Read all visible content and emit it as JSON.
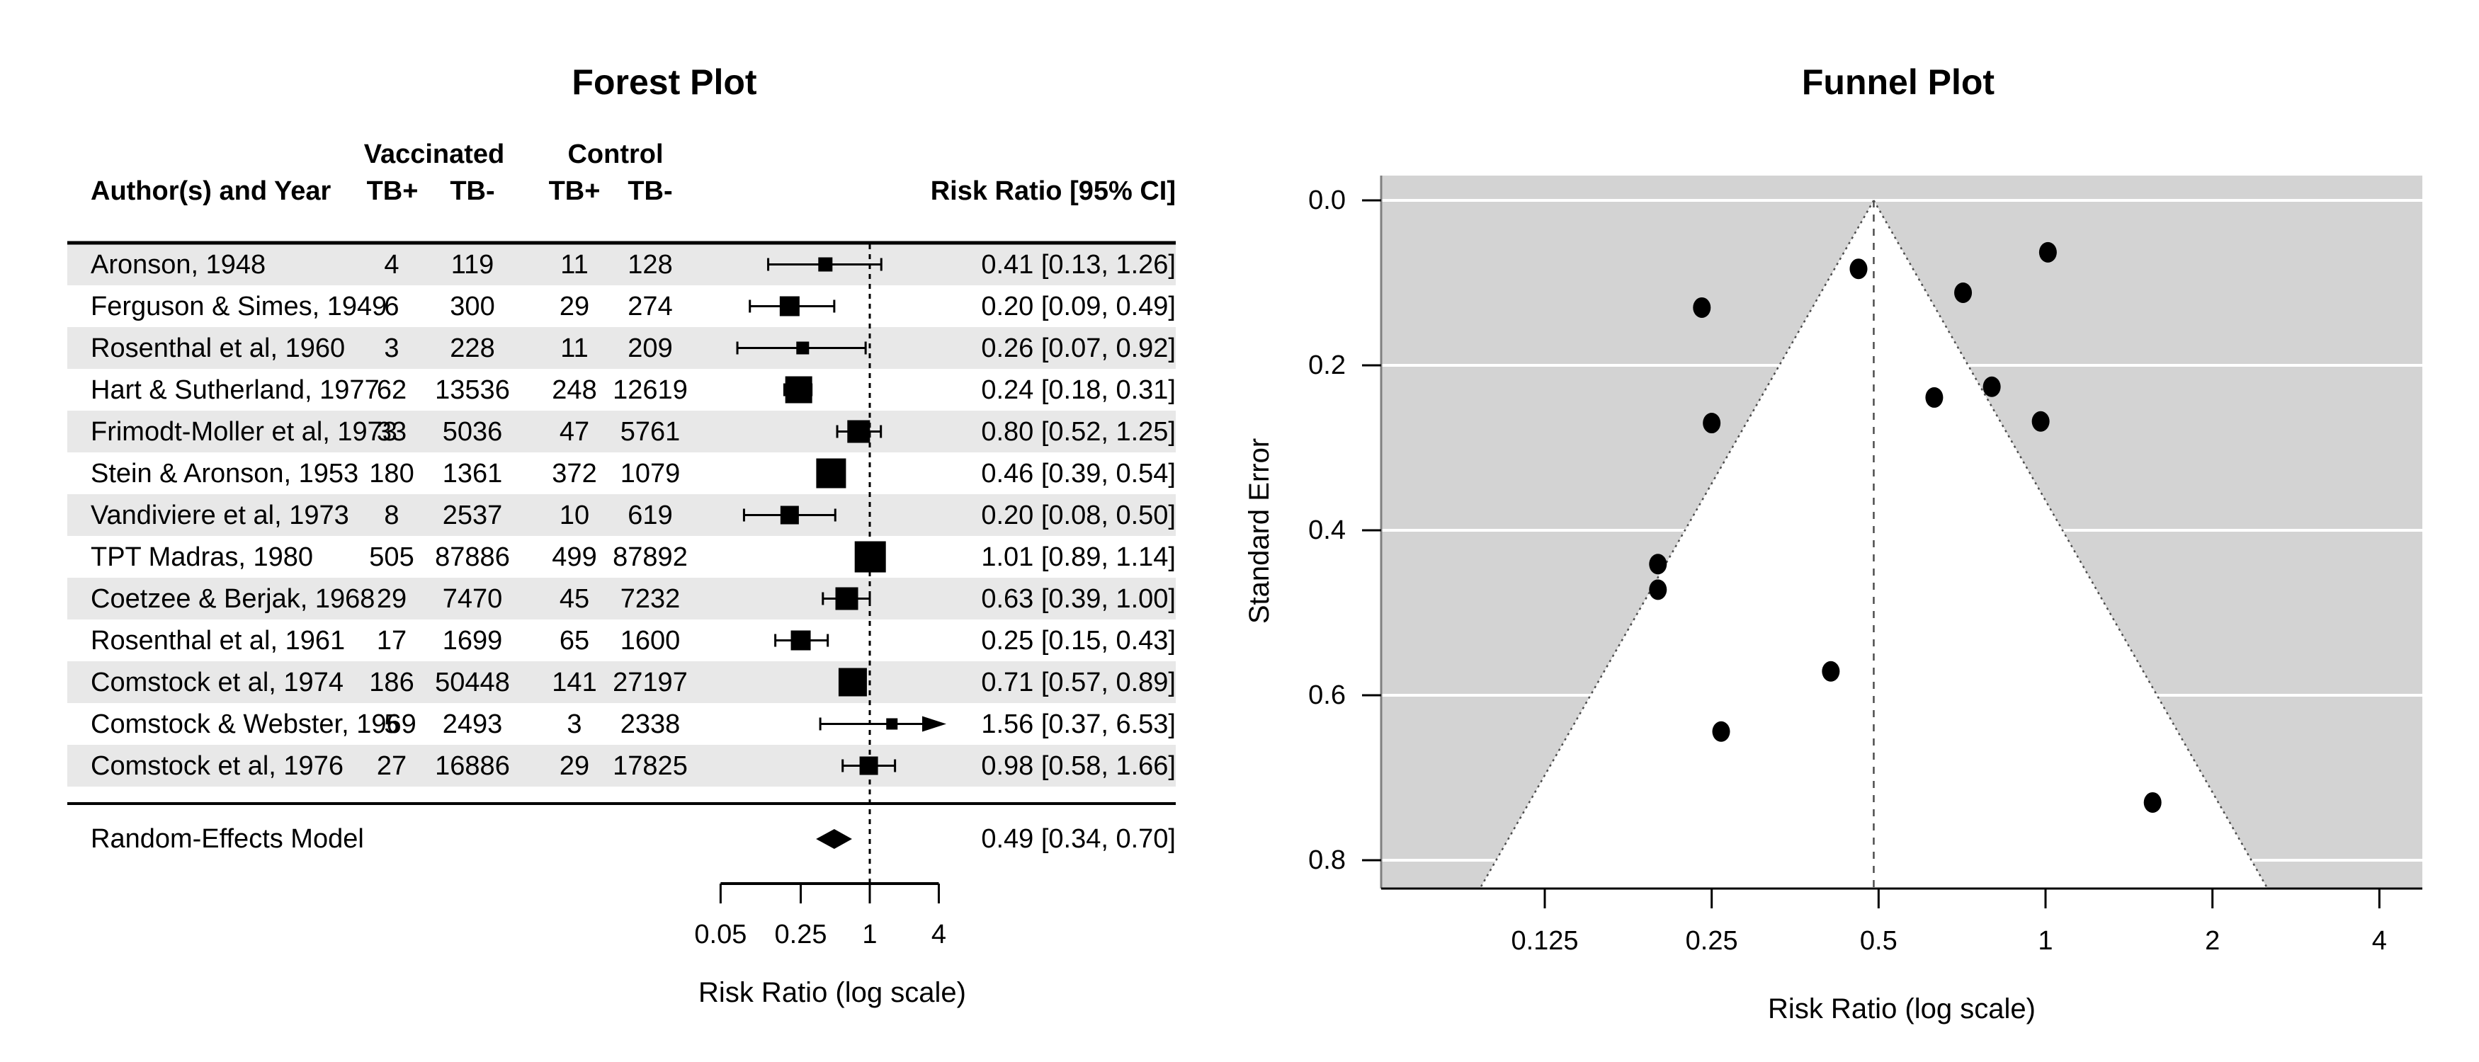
{
  "figure_title": "Meta-analysis: Forest Plot and Funnel Plot",
  "colors": {
    "background": "#FFFFFF",
    "stripe": "#E8E8E8",
    "funnel_background": "#D3D3D3",
    "funnel_region": "#FFFFFF",
    "gridline": "#FFFFFF",
    "ink": "#000000",
    "dotted_line": "#4D4D4D",
    "left_axis": "#808080"
  },
  "chart_data": [
    {
      "type": "forest",
      "title": "Forest Plot",
      "header": {
        "group1": "Vaccinated",
        "group2": "Control",
        "author": "Author(s) and Year",
        "sub": [
          "TB+",
          "TB-",
          "TB+",
          "TB-"
        ],
        "effect": "Risk Ratio [95% CI]"
      },
      "xlabel": "Risk Ratio (log scale)",
      "x_ticks": [
        {
          "value": 0.05,
          "label": "0.05"
        },
        {
          "value": 0.25,
          "label": "0.25"
        },
        {
          "value": 1,
          "label": "1"
        },
        {
          "value": 4,
          "label": "4"
        }
      ],
      "ref_line": 1,
      "xlim": [
        0.05,
        4
      ],
      "studies": [
        {
          "author": "Aronson, 1948",
          "counts": [
            4,
            119,
            11,
            128
          ],
          "rr": 0.41,
          "lo": 0.13,
          "hi": 1.26,
          "label": "0.41 [0.13, 1.26]",
          "size": 10,
          "arrow": false
        },
        {
          "author": "Ferguson & Simes, 1949",
          "counts": [
            6,
            300,
            29,
            274
          ],
          "rr": 0.2,
          "lo": 0.09,
          "hi": 0.49,
          "label": "0.20 [0.09, 0.49]",
          "size": 14,
          "arrow": false
        },
        {
          "author": "Rosenthal et al, 1960",
          "counts": [
            3,
            228,
            11,
            209
          ],
          "rr": 0.26,
          "lo": 0.07,
          "hi": 0.92,
          "label": "0.26 [0.07, 0.92]",
          "size": 9,
          "arrow": false
        },
        {
          "author": "Hart & Sutherland, 1977",
          "counts": [
            62,
            13536,
            248,
            12619
          ],
          "rr": 0.24,
          "lo": 0.18,
          "hi": 0.31,
          "label": "0.24 [0.18, 0.31]",
          "size": 19,
          "arrow": false
        },
        {
          "author": "Frimodt-Moller et al, 1973",
          "counts": [
            33,
            5036,
            47,
            5761
          ],
          "rr": 0.8,
          "lo": 0.52,
          "hi": 1.25,
          "label": "0.80 [0.52, 1.25]",
          "size": 16,
          "arrow": false
        },
        {
          "author": "Stein & Aronson, 1953",
          "counts": [
            180,
            1361,
            372,
            1079
          ],
          "rr": 0.46,
          "lo": 0.39,
          "hi": 0.54,
          "label": "0.46 [0.39, 0.54]",
          "size": 21,
          "arrow": false
        },
        {
          "author": "Vandiviere et al, 1973",
          "counts": [
            8,
            2537,
            10,
            619
          ],
          "rr": 0.2,
          "lo": 0.08,
          "hi": 0.5,
          "label": "0.20 [0.08, 0.50]",
          "size": 13,
          "arrow": false
        },
        {
          "author": "TPT Madras, 1980",
          "counts": [
            505,
            87886,
            499,
            87892
          ],
          "rr": 1.01,
          "lo": 0.89,
          "hi": 1.14,
          "label": "1.01 [0.89, 1.14]",
          "size": 22,
          "arrow": false
        },
        {
          "author": "Coetzee & Berjak, 1968",
          "counts": [
            29,
            7470,
            45,
            7232
          ],
          "rr": 0.63,
          "lo": 0.39,
          "hi": 1.0,
          "label": "0.63 [0.39, 1.00]",
          "size": 16,
          "arrow": false
        },
        {
          "author": "Rosenthal et al, 1961",
          "counts": [
            17,
            1699,
            65,
            1600
          ],
          "rr": 0.25,
          "lo": 0.15,
          "hi": 0.43,
          "label": "0.25 [0.15, 0.43]",
          "size": 14,
          "arrow": false
        },
        {
          "author": "Comstock et al, 1974",
          "counts": [
            186,
            50448,
            141,
            27197
          ],
          "rr": 0.71,
          "lo": 0.57,
          "hi": 0.89,
          "label": "0.71 [0.57, 0.89]",
          "size": 20,
          "arrow": false
        },
        {
          "author": "Comstock & Webster, 1969",
          "counts": [
            5,
            2493,
            3,
            2338
          ],
          "rr": 1.56,
          "lo": 0.37,
          "hi": 6.53,
          "label": "1.56 [0.37, 6.53]",
          "size": 8,
          "arrow": true
        },
        {
          "author": "Comstock et al, 1976",
          "counts": [
            27,
            16886,
            29,
            17825
          ],
          "rr": 0.98,
          "lo": 0.58,
          "hi": 1.66,
          "label": "0.98 [0.58, 1.66]",
          "size": 13,
          "arrow": false
        }
      ],
      "summary": {
        "author": "Random-Effects Model",
        "rr": 0.49,
        "lo": 0.34,
        "hi": 0.7,
        "label": "0.49 [0.34, 0.70]"
      }
    },
    {
      "type": "scatter",
      "title": "Funnel Plot",
      "xlabel": "Risk Ratio (log scale)",
      "ylabel": "Standard Error",
      "x_ticks": [
        {
          "value": 0.125,
          "label": "0.125"
        },
        {
          "value": 0.25,
          "label": "0.25"
        },
        {
          "value": 0.5,
          "label": "0.5"
        },
        {
          "value": 1,
          "label": "1"
        },
        {
          "value": 2,
          "label": "2"
        },
        {
          "value": 4,
          "label": "4"
        }
      ],
      "y_ticks": [
        {
          "value": 0.0,
          "label": "0.0"
        },
        {
          "value": 0.2,
          "label": "0.2"
        },
        {
          "value": 0.4,
          "label": "0.4"
        },
        {
          "value": 0.6,
          "label": "0.6"
        },
        {
          "value": 0.8,
          "label": "0.8"
        }
      ],
      "ylim": [
        0.0,
        0.8
      ],
      "estimate": 0.49,
      "conf_z": 1.96,
      "legend": "none",
      "grid": "horizontal-white",
      "points": [
        {
          "rr": 0.41,
          "se": 0.571
        },
        {
          "rr": 0.2,
          "se": 0.441
        },
        {
          "rr": 0.26,
          "se": 0.644
        },
        {
          "rr": 0.24,
          "se": 0.13
        },
        {
          "rr": 0.8,
          "se": 0.226
        },
        {
          "rr": 0.46,
          "se": 0.083
        },
        {
          "rr": 0.2,
          "se": 0.472
        },
        {
          "rr": 1.01,
          "se": 0.063
        },
        {
          "rr": 0.63,
          "se": 0.239
        },
        {
          "rr": 0.25,
          "se": 0.27
        },
        {
          "rr": 0.71,
          "se": 0.112
        },
        {
          "rr": 1.56,
          "se": 0.73
        },
        {
          "rr": 0.98,
          "se": 0.268
        }
      ]
    }
  ]
}
